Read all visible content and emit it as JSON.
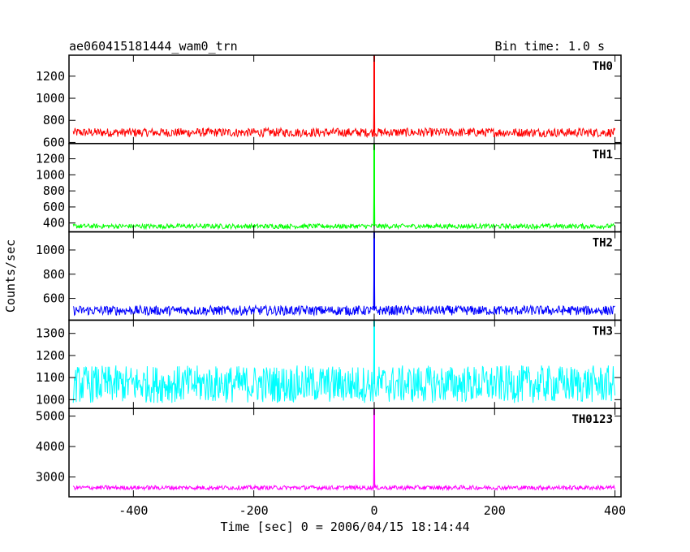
{
  "chart_data": {
    "type": "line",
    "title": "ae060415181444_wam0_trn",
    "subtitle": "Bin time: 1.0 s",
    "xlabel": "Time [sec] 0 = 2006/04/15 18:14:44",
    "ylabel": "Counts/sec",
    "xlim": [
      -507,
      410
    ],
    "x_ticks": [
      -400,
      -200,
      0,
      200,
      400
    ],
    "bin_seconds": 1.0,
    "grid": false,
    "legend": "none",
    "panels": [
      {
        "name": "TH0",
        "color": "#ff0000",
        "ylim": [
          590,
          1390
        ],
        "y_ticks": [
          600,
          800,
          1000,
          1200
        ],
        "baseline": 690,
        "noise_halfrange": 40,
        "peak": {
          "x": 0,
          "y": 1390
        }
      },
      {
        "name": "TH1",
        "color": "#00ff00",
        "ylim": [
          290,
          1390
        ],
        "y_ticks": [
          400,
          600,
          800,
          1000,
          1200
        ],
        "baseline": 360,
        "noise_halfrange": 30,
        "peak": {
          "x": 0,
          "y": 1390
        }
      },
      {
        "name": "TH2",
        "color": "#0000ff",
        "ylim": [
          420,
          1150
        ],
        "y_ticks": [
          600,
          800,
          1000
        ],
        "baseline": 500,
        "noise_halfrange": 40,
        "peak": {
          "x": 0,
          "y": 1150
        }
      },
      {
        "name": "TH3",
        "color": "#00ffff",
        "ylim": [
          960,
          1360
        ],
        "y_ticks": [
          1000,
          1100,
          1200,
          1300
        ],
        "baseline": 1070,
        "noise_halfrange": 85,
        "peak": {
          "x": 0,
          "y": 1360
        }
      },
      {
        "name": "TH0123",
        "color": "#ff00ff",
        "ylim": [
          2350,
          5250
        ],
        "y_ticks": [
          3000,
          4000,
          5000
        ],
        "baseline": 2650,
        "noise_halfrange": 70,
        "peak": {
          "x": 0,
          "y": 5250
        }
      }
    ]
  }
}
